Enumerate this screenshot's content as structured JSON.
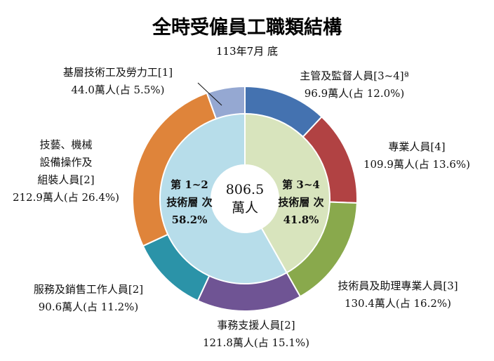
{
  "chart_data": {
    "type": "pie",
    "title": "全時受僱員工職類結構",
    "subtitle": "113年7月 底",
    "center": {
      "value": "806.5",
      "unit": "萬人"
    },
    "outer": [
      {
        "lines": [
          "主管及監督人員[3~4]ª"
        ],
        "value_label": "96.9萬人(占 12.0%)",
        "value": 96.9,
        "percent": 12.0,
        "color": "#4472b0"
      },
      {
        "lines": [
          "專業人員[4]"
        ],
        "value_label": "109.9萬人(占 13.6%)",
        "value": 109.9,
        "percent": 13.6,
        "color": "#b14243"
      },
      {
        "lines": [
          "技術員及助理專業人員[3]"
        ],
        "value_label": "130.4萬人(占 16.2%)",
        "value": 130.4,
        "percent": 16.2,
        "color": "#89a94c"
      },
      {
        "lines": [
          "事務支援人員[2]"
        ],
        "value_label": "121.8萬人(占 15.1%)",
        "value": 121.8,
        "percent": 15.1,
        "color": "#6f5494"
      },
      {
        "lines": [
          "服務及銷售工作人員[2]"
        ],
        "value_label": "90.6萬人(占 11.2%)",
        "value": 90.6,
        "percent": 11.2,
        "color": "#2b93a8"
      },
      {
        "lines": [
          "技藝、機械",
          "設備操作及",
          "組裝人員[2]"
        ],
        "value_label": "212.9萬人(占 26.4%)",
        "value": 212.9,
        "percent": 26.4,
        "color": "#df843a"
      },
      {
        "lines": [
          "基層技術工及勞力工[1]"
        ],
        "value_label": "44.0萬人(占 5.5%)",
        "value": 44.0,
        "percent": 5.5,
        "color": "#95a8d2"
      }
    ],
    "inner": [
      {
        "lines": [
          "第 3~4",
          "技術層 次",
          "41.8%"
        ],
        "percent": 41.8,
        "color": "#d8e4bd"
      },
      {
        "lines": [
          "第 1~2",
          "技術層 次",
          "58.2%"
        ],
        "percent": 58.2,
        "color": "#b7ddea"
      }
    ]
  }
}
